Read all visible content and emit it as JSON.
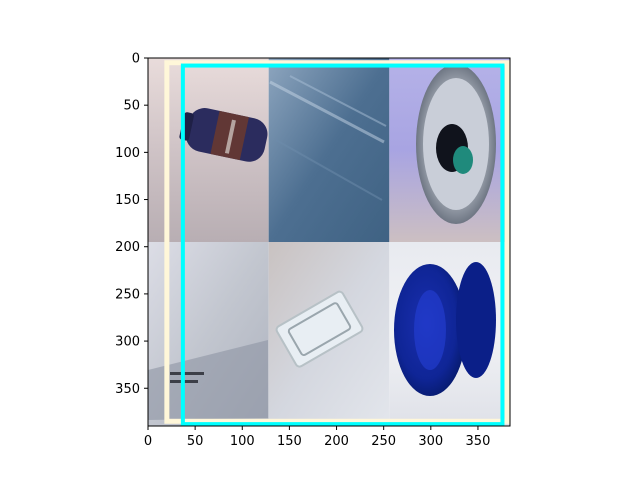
{
  "chart_data": {
    "type": "image",
    "title": "",
    "xlabel": "",
    "ylabel": "",
    "xlim": [
      0,
      384
    ],
    "ylim": [
      390,
      0
    ],
    "x_ticks": [
      0,
      50,
      100,
      150,
      200,
      250,
      300,
      350
    ],
    "y_ticks": [
      0,
      50,
      100,
      150,
      200,
      250,
      300,
      350
    ],
    "grid": false,
    "tiles": [
      {
        "name": "tile-bottle-photo",
        "x0": 0,
        "x1": 128,
        "y0": 0,
        "y1": 195,
        "colors": [
          "#e9dcdb",
          "#cfc3c6",
          "#b8aeb3"
        ]
      },
      {
        "name": "tile-blue-sheet-photo",
        "x0": 128,
        "x1": 256,
        "y0": 0,
        "y1": 195,
        "colors": [
          "#8ea6bf",
          "#4d6f91",
          "#3f6283"
        ]
      },
      {
        "name": "tile-can-top-photo",
        "x0": 256,
        "x1": 384,
        "y0": 0,
        "y1": 195,
        "colors": [
          "#b5b2e8",
          "#a8a4e2",
          "#ccbfc2"
        ]
      },
      {
        "name": "tile-cardboard-photo",
        "x0": 0,
        "x1": 128,
        "y0": 195,
        "y1": 390,
        "colors": [
          "#dcdde6",
          "#c2c6cf",
          "#aeb3bf"
        ]
      },
      {
        "name": "tile-glass-tray-photo",
        "x0": 128,
        "x1": 256,
        "y0": 195,
        "y1": 390,
        "colors": [
          "#c9c2c1",
          "#d4d7df",
          "#e3e6ec"
        ]
      },
      {
        "name": "tile-blue-caps-photo",
        "x0": 256,
        "x1": 384,
        "y0": 195,
        "y1": 390,
        "colors": [
          "#e8eaf0",
          "#f1f2f5",
          "#dfe1e8"
        ]
      }
    ],
    "boxes": [
      {
        "name": "cyan-bounding-box",
        "x0": 37,
        "y0": 8,
        "x1": 376,
        "y1": 388,
        "color": "#00ffff"
      },
      {
        "name": "cream-bounding-box",
        "x0": 20,
        "y0": 5,
        "x1": 381,
        "y1": 385,
        "color": "#fff7d9"
      }
    ]
  }
}
